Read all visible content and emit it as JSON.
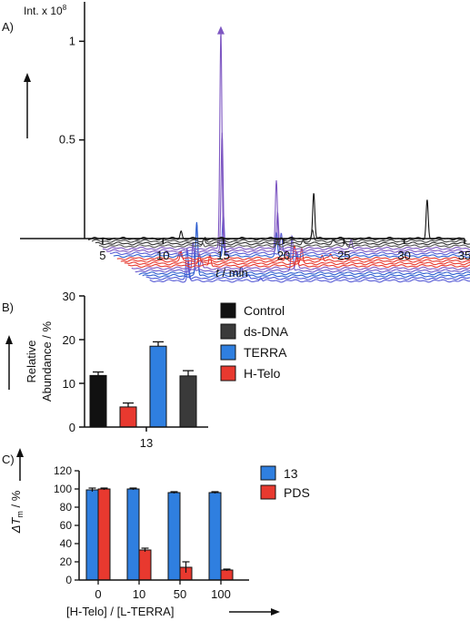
{
  "chart_data": [
    {
      "panel": "A)",
      "type": "line",
      "ylabel": "Int. x 10",
      "ylabel_exponent": "8",
      "xlabel_var": "t",
      "xlabel_unit": " / min",
      "xlim": [
        3.5,
        35
      ],
      "ylim": [
        0,
        1.2
      ],
      "x_ticks": [
        "5",
        "10",
        "15",
        "20",
        "25",
        "30",
        "35"
      ],
      "y_ticks": [
        "0.5",
        "1"
      ],
      "stack_offset": {
        "dx": -0.3,
        "dy": -0.0126
      },
      "series": [
        {
          "color": "#111111",
          "peaks": [
            [
              11.5,
              0.04
            ],
            [
              22.5,
              0.23
            ],
            [
              31.9,
              0.2
            ]
          ]
        },
        {
          "color": "#444444",
          "peaks": [
            [
              13.2,
              0.02
            ],
            [
              19.5,
              0.02
            ],
            [
              22.1,
              0.05
            ]
          ]
        },
        {
          "color": "#333333",
          "peaks": [
            [
              12.8,
              0.03
            ],
            [
              21.0,
              0.02
            ],
            [
              23.5,
              0.02
            ]
          ]
        },
        {
          "color": "#555555",
          "peaks": [
            [
              12.4,
              0.02
            ],
            [
              18.6,
              0.03
            ],
            [
              24.2,
              0.02
            ]
          ]
        },
        {
          "color": "#7e57c2",
          "peaks": [
            [
              13.6,
              1.1
            ],
            [
              18.2,
              0.35
            ],
            [
              24.4,
              0.05
            ]
          ]
        },
        {
          "color": "#7e57c2",
          "peaks": [
            [
              13.4,
              0.6
            ],
            [
              18.0,
              0.2
            ]
          ]
        },
        {
          "color": "#5b5fd6",
          "peaks": [
            [
              13.2,
              0.2
            ],
            [
              18.0,
              0.1
            ]
          ]
        },
        {
          "color": "#2f5fd0",
          "peaks": [
            [
              12.9,
              0.07
            ],
            [
              17.3,
              0.12
            ]
          ]
        },
        {
          "color": "#e8392f",
          "peaks": [
            [
              9.0,
              0.03
            ],
            [
              18.5,
              0.07
            ],
            [
              21.5,
              0.02
            ]
          ]
        },
        {
          "color": "#e8392f",
          "peaks": [
            [
              8.8,
              0.04
            ],
            [
              17.5,
              0.05
            ],
            [
              20.5,
              0.03
            ]
          ]
        },
        {
          "color": "#e8392f",
          "peaks": [
            [
              10.0,
              0.05
            ],
            [
              18.5,
              0.07
            ]
          ]
        },
        {
          "color": "#e8392f",
          "peaks": [
            [
              10.6,
              0.06
            ],
            [
              17.8,
              0.04
            ]
          ]
        },
        {
          "color": "#7e57c2",
          "peaks": [
            [
              9.6,
              0.04
            ],
            [
              17.5,
              0.08
            ]
          ]
        },
        {
          "color": "#6a5acd",
          "peaks": [
            [
              8.6,
              0.15
            ],
            [
              16.8,
              0.18
            ]
          ]
        },
        {
          "color": "#2f5fd0",
          "peaks": [
            [
              8.6,
              0.25
            ],
            [
              12.3,
              0.03
            ]
          ]
        },
        {
          "color": "#2f5fd0",
          "peaks": [
            [
              8.3,
              0.27
            ],
            [
              11.5,
              0.03
            ]
          ]
        },
        {
          "color": "#4a58d8",
          "peaks": [
            [
              7.2,
              0.15
            ],
            [
              12.3,
              0.02
            ]
          ]
        },
        {
          "color": "#5b5fd6",
          "peaks": [
            [
              7.0,
              0.1
            ],
            [
              13.0,
              0.02
            ]
          ]
        }
      ]
    },
    {
      "panel": "B)",
      "type": "bar",
      "ylabel": [
        "Relative",
        "Abundance / %"
      ],
      "ylim": [
        0,
        30
      ],
      "y_ticks": [
        "0",
        "10",
        "20",
        "30"
      ],
      "categories": [
        "13"
      ],
      "series": [
        {
          "name": "Control",
          "color": "#111111",
          "values": [
            11.8
          ],
          "errors": [
            0.8
          ]
        },
        {
          "name": "H-Telo",
          "color": "#e8392f",
          "values": [
            4.6
          ],
          "errors": [
            0.9
          ]
        },
        {
          "name": "TERRA",
          "color": "#2f7fe0",
          "values": [
            18.5
          ],
          "errors": [
            1.0
          ]
        },
        {
          "name": "ds-DNA",
          "color": "#3a3a3a",
          "values": [
            11.7
          ],
          "errors": [
            1.2
          ]
        }
      ],
      "legend": [
        {
          "name": "Control",
          "color": "#111111"
        },
        {
          "name": "ds-DNA",
          "color": "#3a3a3a"
        },
        {
          "name": "TERRA",
          "color": "#2f7fe0"
        },
        {
          "name": "H-Telo",
          "color": "#e8392f"
        }
      ]
    },
    {
      "panel": "C)",
      "type": "bar",
      "ylabel": "ΔT",
      "ylabel_sub": "m",
      "ylabel_unit": " / %",
      "xlabel": "[H-Telo] / [L-TERRA]",
      "ylim": [
        0,
        120
      ],
      "y_ticks": [
        "0",
        "20",
        "40",
        "60",
        "80",
        "100",
        "120"
      ],
      "categories": [
        "0",
        "10",
        "50",
        "100"
      ],
      "series": [
        {
          "name": "13",
          "color": "#2f7fe0",
          "values": [
            99,
            100,
            96,
            96
          ],
          "errors": [
            2,
            1,
            1,
            1
          ]
        },
        {
          "name": "PDS",
          "color": "#e8392f",
          "values": [
            100,
            33,
            14,
            11
          ],
          "errors": [
            1,
            2,
            6,
            1
          ]
        }
      ]
    }
  ]
}
